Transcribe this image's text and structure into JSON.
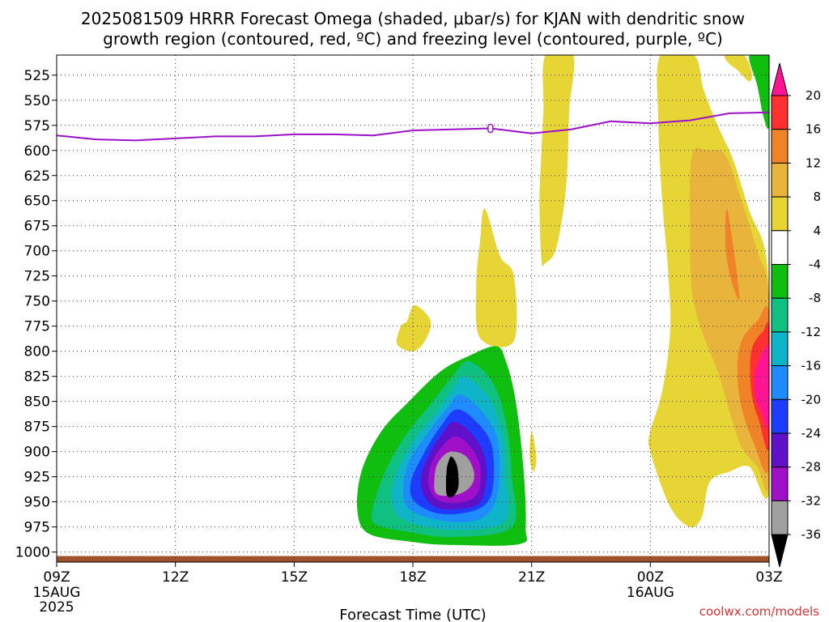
{
  "chart_data": {
    "type": "heatmap",
    "title_line1": "2025081509 HRRR Forecast Omega (shaded, μbar/s) for KJAN with dendritic snow",
    "title_line2": "growth region (contoured, red, ºC) and freezing level (contoured, purple, ºC)",
    "xlabel": "Forecast Time (UTC)",
    "x_ticks": [
      {
        "h": 0,
        "label": "09Z",
        "sub1": "15AUG",
        "sub2": "2025"
      },
      {
        "h": 3,
        "label": "12Z",
        "sub1": "",
        "sub2": ""
      },
      {
        "h": 6,
        "label": "15Z",
        "sub1": "",
        "sub2": ""
      },
      {
        "h": 9,
        "label": "18Z",
        "sub1": "",
        "sub2": ""
      },
      {
        "h": 12,
        "label": "21Z",
        "sub1": "",
        "sub2": ""
      },
      {
        "h": 15,
        "label": "00Z",
        "sub1": "16AUG",
        "sub2": ""
      },
      {
        "h": 18,
        "label": "03Z",
        "sub1": "",
        "sub2": ""
      }
    ],
    "y_ticks": [
      525,
      550,
      575,
      600,
      625,
      650,
      675,
      700,
      725,
      750,
      775,
      800,
      825,
      850,
      875,
      900,
      925,
      950,
      975,
      1000
    ],
    "y_range_hpa": [
      505,
      1010
    ],
    "x_range_h": [
      0,
      18
    ],
    "colorbar": {
      "levels": [
        "20",
        "16",
        "12",
        "8",
        "4",
        "-4",
        "-8",
        "-12",
        "-16",
        "-20",
        "-24",
        "-28",
        "-32",
        "-36"
      ],
      "colors": [
        "#ff1493",
        "#ff3030",
        "#f08228",
        "#e8b43c",
        "#e6d535",
        "#ffffff",
        "#10be10",
        "#10c080",
        "#10b4c8",
        "#1e8cff",
        "#1e3cff",
        "#6010c8",
        "#a010c8",
        "#a0a0a0",
        "#000000"
      ]
    },
    "freezing_level": {
      "color": "#9b10c8",
      "label": "0",
      "points": [
        [
          0,
          585
        ],
        [
          1,
          589
        ],
        [
          2,
          590
        ],
        [
          3,
          588
        ],
        [
          4,
          586
        ],
        [
          5,
          586
        ],
        [
          6,
          584
        ],
        [
          7,
          584
        ],
        [
          8,
          585
        ],
        [
          9,
          580
        ],
        [
          10,
          579
        ],
        [
          10.96,
          578
        ],
        [
          12,
          583
        ],
        [
          13,
          579
        ],
        [
          14,
          571
        ],
        [
          15,
          573
        ],
        [
          16,
          570
        ],
        [
          17,
          563
        ],
        [
          18,
          562
        ]
      ]
    },
    "omega_regions": [
      {
        "value": "4 to 8",
        "color": "#e6d535",
        "points": [
          [
            12.35,
            505
          ],
          [
            13.05,
            505
          ],
          [
            12.95,
            560
          ],
          [
            12.9,
            620
          ],
          [
            12.8,
            660
          ],
          [
            12.6,
            700
          ],
          [
            12.35,
            712
          ],
          [
            12.25,
            710
          ],
          [
            12.2,
            650
          ],
          [
            12.25,
            600
          ],
          [
            12.3,
            560
          ]
        ]
      },
      {
        "value": "4 to 8",
        "color": "#e6d535",
        "points": [
          [
            15.25,
            505
          ],
          [
            16.1,
            505
          ],
          [
            16.35,
            540
          ],
          [
            16.7,
            575
          ],
          [
            17.1,
            610
          ],
          [
            17.5,
            660
          ],
          [
            17.9,
            700
          ],
          [
            18.0,
            770
          ],
          [
            18.0,
            940
          ],
          [
            17.5,
            915
          ],
          [
            17.0,
            920
          ],
          [
            16.5,
            930
          ],
          [
            16.3,
            965
          ],
          [
            16.0,
            975
          ],
          [
            15.5,
            955
          ],
          [
            15.0,
            900
          ],
          [
            15.0,
            880
          ],
          [
            15.3,
            840
          ],
          [
            15.5,
            780
          ],
          [
            15.45,
            720
          ],
          [
            15.3,
            650
          ],
          [
            15.2,
            570
          ]
        ]
      },
      {
        "value": "8 to 12",
        "color": "#e8b43c",
        "points": [
          [
            16.05,
            605
          ],
          [
            16.45,
            600
          ],
          [
            16.9,
            605
          ],
          [
            17.3,
            650
          ],
          [
            17.7,
            700
          ],
          [
            18.0,
            750
          ],
          [
            18.0,
            930
          ],
          [
            17.7,
            915
          ],
          [
            17.3,
            895
          ],
          [
            17.0,
            860
          ],
          [
            16.7,
            820
          ],
          [
            16.3,
            780
          ],
          [
            16.05,
            740
          ],
          [
            16.0,
            680
          ]
        ]
      },
      {
        "value": "12 to 16",
        "color": "#f08228",
        "points": [
          [
            16.95,
            660
          ],
          [
            17.25,
            745
          ],
          [
            17.05,
            730
          ],
          [
            16.9,
            695
          ]
        ]
      },
      {
        "value": "12 to 16",
        "color": "#f08228",
        "points": [
          [
            17.3,
            790
          ],
          [
            17.7,
            770
          ],
          [
            18.0,
            765
          ],
          [
            18.0,
            915
          ],
          [
            17.6,
            890
          ],
          [
            17.3,
            855
          ],
          [
            17.2,
            820
          ]
        ]
      },
      {
        "value": "16 to 20",
        "color": "#ff3030",
        "points": [
          [
            17.55,
            800
          ],
          [
            17.85,
            780
          ],
          [
            18.0,
            780
          ],
          [
            18.0,
            895
          ],
          [
            17.75,
            870
          ],
          [
            17.55,
            840
          ]
        ]
      },
      {
        "value": "> 20",
        "color": "#ff1493",
        "points": [
          [
            17.65,
            820
          ],
          [
            17.85,
            800
          ],
          [
            18.0,
            800
          ],
          [
            18.0,
            875
          ],
          [
            17.8,
            860
          ],
          [
            17.65,
            845
          ]
        ]
      },
      {
        "value": "4 to 8",
        "color": "#e6d535",
        "points": [
          [
            10.82,
            658
          ],
          [
            11.2,
            705
          ],
          [
            11.55,
            725
          ],
          [
            11.55,
            790
          ],
          [
            10.7,
            787
          ],
          [
            10.6,
            735
          ],
          [
            10.7,
            690
          ]
        ]
      },
      {
        "value": "4 to 8",
        "color": "#e6d535",
        "points": [
          [
            9.05,
            754
          ],
          [
            9.45,
            770
          ],
          [
            9.3,
            790
          ],
          [
            9.0,
            800
          ],
          [
            8.6,
            793
          ],
          [
            8.7,
            775
          ],
          [
            8.85,
            770
          ]
        ]
      },
      {
        "value": "4 to 8",
        "color": "#e6d535",
        "points": [
          [
            12.0,
            880
          ],
          [
            12.12,
            905
          ],
          [
            12.05,
            920
          ],
          [
            11.95,
            905
          ]
        ]
      },
      {
        "value": "-4 to -8",
        "color": "#10be10",
        "points": [
          [
            11.1,
            795
          ],
          [
            11.35,
            810
          ],
          [
            11.6,
            850
          ],
          [
            11.8,
            920
          ],
          [
            11.85,
            975
          ],
          [
            11.7,
            992
          ],
          [
            10.0,
            993
          ],
          [
            9.0,
            990
          ],
          [
            7.9,
            982
          ],
          [
            7.6,
            960
          ],
          [
            7.7,
            920
          ],
          [
            8.2,
            880
          ],
          [
            8.9,
            850
          ],
          [
            9.7,
            820
          ],
          [
            10.4,
            805
          ]
        ]
      },
      {
        "value": "-8 to -12",
        "color": "#10c080",
        "points": [
          [
            10.4,
            810
          ],
          [
            11.0,
            830
          ],
          [
            11.35,
            870
          ],
          [
            11.5,
            925
          ],
          [
            11.5,
            975
          ],
          [
            10.0,
            985
          ],
          [
            8.9,
            980
          ],
          [
            8.05,
            972
          ],
          [
            8.0,
            955
          ],
          [
            8.3,
            920
          ],
          [
            8.8,
            885
          ],
          [
            9.5,
            850
          ],
          [
            10.0,
            825
          ]
        ]
      },
      {
        "value": "-12 to -16",
        "color": "#10b4c8",
        "points": [
          [
            10.3,
            825
          ],
          [
            10.9,
            845
          ],
          [
            11.25,
            880
          ],
          [
            11.35,
            925
          ],
          [
            11.3,
            970
          ],
          [
            10.0,
            978
          ],
          [
            8.9,
            970
          ],
          [
            8.5,
            955
          ],
          [
            8.55,
            925
          ],
          [
            9.0,
            890
          ],
          [
            9.6,
            860
          ],
          [
            10.0,
            838
          ]
        ]
      },
      {
        "value": "-16 to -20",
        "color": "#1e8cff",
        "points": [
          [
            10.2,
            843
          ],
          [
            10.75,
            860
          ],
          [
            11.15,
            890
          ],
          [
            11.15,
            940
          ],
          [
            10.8,
            965
          ],
          [
            10.0,
            970
          ],
          [
            9.0,
            960
          ],
          [
            8.75,
            940
          ],
          [
            8.9,
            910
          ],
          [
            9.4,
            880
          ],
          [
            9.9,
            855
          ]
        ]
      },
      {
        "value": "-20 to -24",
        "color": "#1e3cff",
        "points": [
          [
            10.1,
            858
          ],
          [
            10.6,
            870
          ],
          [
            11.0,
            895
          ],
          [
            11.0,
            940
          ],
          [
            10.6,
            958
          ],
          [
            9.7,
            962
          ],
          [
            9.05,
            950
          ],
          [
            8.95,
            930
          ],
          [
            9.3,
            900
          ],
          [
            9.7,
            875
          ]
        ]
      },
      {
        "value": "-24 to -28",
        "color": "#6010c8",
        "points": [
          [
            10.05,
            870
          ],
          [
            10.55,
            885
          ],
          [
            10.85,
            910
          ],
          [
            10.8,
            942
          ],
          [
            10.5,
            955
          ],
          [
            9.7,
            957
          ],
          [
            9.3,
            945
          ],
          [
            9.2,
            925
          ],
          [
            9.45,
            900
          ],
          [
            9.75,
            882
          ]
        ]
      },
      {
        "value": "-28 to -32",
        "color": "#a010c8",
        "points": [
          [
            10.05,
            885
          ],
          [
            10.45,
            895
          ],
          [
            10.7,
            915
          ],
          [
            10.65,
            940
          ],
          [
            10.3,
            950
          ],
          [
            9.75,
            950
          ],
          [
            9.45,
            940
          ],
          [
            9.4,
            922
          ],
          [
            9.6,
            902
          ]
        ]
      },
      {
        "value": "-32 to -36",
        "color": "#a0a0a0",
        "points": [
          [
            9.95,
            900
          ],
          [
            10.35,
            905
          ],
          [
            10.55,
            922
          ],
          [
            10.45,
            935
          ],
          [
            10.1,
            943
          ],
          [
            9.6,
            942
          ],
          [
            9.55,
            925
          ],
          [
            9.65,
            910
          ]
        ]
      },
      {
        "value": "< -36",
        "color": "#000000",
        "points": [
          [
            9.98,
            905
          ],
          [
            10.12,
            915
          ],
          [
            10.15,
            935
          ],
          [
            10.0,
            945
          ],
          [
            9.85,
            942
          ],
          [
            9.85,
            920
          ],
          [
            9.9,
            910
          ]
        ]
      },
      {
        "value": "-4 to -8",
        "color": "#10be10",
        "points": [
          [
            17.5,
            505
          ],
          [
            18.0,
            505
          ],
          [
            18.0,
            575
          ],
          [
            17.85,
            565
          ],
          [
            17.7,
            535
          ]
        ]
      },
      {
        "value": "4 to 8",
        "color": "#e6d535",
        "points": [
          [
            16.9,
            505
          ],
          [
            17.35,
            505
          ],
          [
            17.55,
            520
          ],
          [
            17.55,
            530
          ],
          [
            17.45,
            530
          ],
          [
            17.2,
            520
          ],
          [
            16.95,
            512
          ]
        ]
      }
    ],
    "dendritic_snow_growth_region": [],
    "terrain": {
      "color": "#a0522d",
      "surface_hpa": 1004
    }
  },
  "credit": "coolwx.com/models"
}
